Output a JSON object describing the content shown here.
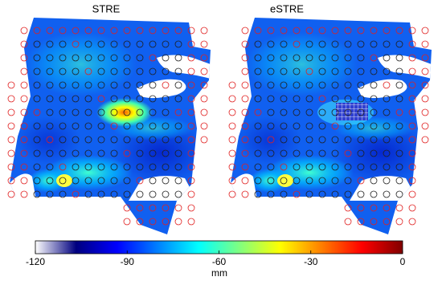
{
  "panels": [
    {
      "title": "STRE"
    },
    {
      "title": "eSTRE"
    }
  ],
  "colorbar": {
    "label": "mm",
    "lim": [
      -120,
      0
    ],
    "ticks": [
      -120,
      -90,
      -60,
      -30,
      0
    ],
    "colormap": [
      "#ffffff",
      "#00007f",
      "#0000ff",
      "#0080ff",
      "#00ffff",
      "#80ff80",
      "#ffff00",
      "#ff8000",
      "#ff0000",
      "#800000"
    ]
  }
}
